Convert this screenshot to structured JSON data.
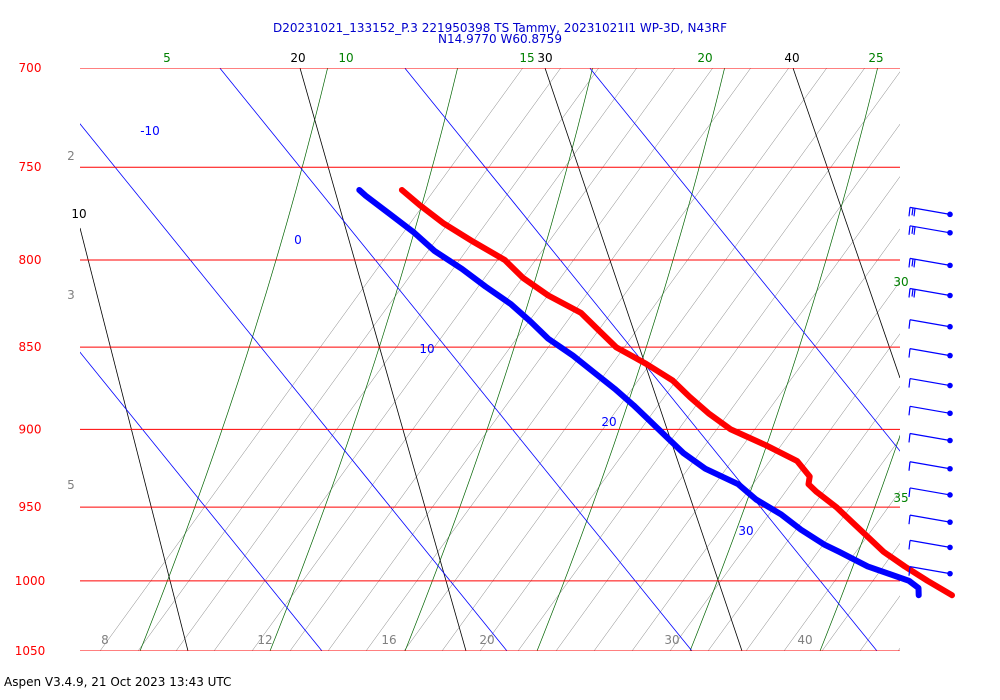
{
  "title_line1": "D20231021_133152_P.3 221950398 TS Tammy, 20231021I1 WP-3D, N43RF",
  "title_line2": "N14.9770 W60.8759",
  "footer": "Aspen V3.4.9, 21 Oct 2023  13:43 UTC",
  "colors": {
    "isobar": "#ff0000",
    "isotherm": "#0000ff",
    "dry_adiabat": "#000000",
    "moist_adiabat": "#006400",
    "mixing_ratio": "#808080",
    "temperature": "#ff0000",
    "dewpoint": "#0000ff",
    "wind_barb": "#0000ff"
  },
  "chart_data": {
    "type": "skew-t log-p",
    "pressure_levels": [
      700,
      750,
      800,
      850,
      900,
      950,
      1000,
      1050
    ],
    "pressure_range": [
      700,
      1050
    ],
    "isotherm_labels": [
      "-10",
      "0",
      "10",
      "20",
      "30"
    ],
    "dry_adiabat_labels": [
      "20",
      "30",
      "40",
      "10"
    ],
    "moist_adiabat_labels": [
      "5",
      "10",
      "15",
      "20",
      "25",
      "30",
      "35"
    ],
    "mixing_ratio_labels": [
      "8",
      "12",
      "16",
      "20",
      "30",
      "40",
      "2",
      "3",
      "5"
    ],
    "temperature": [
      {
        "p": 1010,
        "t": 26.5
      },
      {
        "p": 1000,
        "t": 25.8
      },
      {
        "p": 990,
        "t": 25.2
      },
      {
        "p": 980,
        "t": 24.7
      },
      {
        "p": 970,
        "t": 24.5
      },
      {
        "p": 960,
        "t": 24.3
      },
      {
        "p": 950,
        "t": 24.1
      },
      {
        "p": 940,
        "t": 23.7
      },
      {
        "p": 935,
        "t": 23.6
      },
      {
        "p": 930,
        "t": 24.0
      },
      {
        "p": 925,
        "t": 24.0
      },
      {
        "p": 920,
        "t": 24.0
      },
      {
        "p": 910,
        "t": 23.0
      },
      {
        "p": 900,
        "t": 21.8
      },
      {
        "p": 890,
        "t": 21.3
      },
      {
        "p": 880,
        "t": 21.0
      },
      {
        "p": 870,
        "t": 20.8
      },
      {
        "p": 860,
        "t": 20.1
      },
      {
        "p": 850,
        "t": 19.2
      },
      {
        "p": 840,
        "t": 19.0
      },
      {
        "p": 830,
        "t": 18.8
      },
      {
        "p": 820,
        "t": 17.8
      },
      {
        "p": 810,
        "t": 17.2
      },
      {
        "p": 800,
        "t": 17.0
      },
      {
        "p": 790,
        "t": 16.1
      },
      {
        "p": 780,
        "t": 15.3
      },
      {
        "p": 770,
        "t": 14.8
      },
      {
        "p": 762,
        "t": 14.5
      }
    ],
    "dewpoint": [
      {
        "p": 1010,
        "t": 24.7
      },
      {
        "p": 1005,
        "t": 25.0
      },
      {
        "p": 1000,
        "t": 24.8
      },
      {
        "p": 990,
        "t": 23.2
      },
      {
        "p": 980,
        "t": 22.3
      },
      {
        "p": 975,
        "t": 21.8
      },
      {
        "p": 965,
        "t": 21.2
      },
      {
        "p": 955,
        "t": 20.8
      },
      {
        "p": 945,
        "t": 20.1
      },
      {
        "p": 935,
        "t": 19.8
      },
      {
        "p": 925,
        "t": 18.7
      },
      {
        "p": 915,
        "t": 18.2
      },
      {
        "p": 905,
        "t": 18.0
      },
      {
        "p": 895,
        "t": 17.8
      },
      {
        "p": 885,
        "t": 17.6
      },
      {
        "p": 875,
        "t": 17.3
      },
      {
        "p": 865,
        "t": 16.9
      },
      {
        "p": 855,
        "t": 16.5
      },
      {
        "p": 845,
        "t": 15.9
      },
      {
        "p": 835,
        "t": 15.7
      },
      {
        "p": 825,
        "t": 15.4
      },
      {
        "p": 815,
        "t": 14.8
      },
      {
        "p": 805,
        "t": 14.3
      },
      {
        "p": 795,
        "t": 13.6
      },
      {
        "p": 785,
        "t": 13.3
      },
      {
        "p": 775,
        "t": 12.8
      },
      {
        "p": 765,
        "t": 12.3
      },
      {
        "p": 762,
        "t": 12.2
      }
    ],
    "wind_barbs": [
      {
        "p": 775,
        "speed_kt": 15
      },
      {
        "p": 785,
        "speed_kt": 15
      },
      {
        "p": 803,
        "speed_kt": 15
      },
      {
        "p": 820,
        "speed_kt": 15
      },
      {
        "p": 838,
        "speed_kt": 10
      },
      {
        "p": 855,
        "speed_kt": 10
      },
      {
        "p": 873,
        "speed_kt": 10
      },
      {
        "p": 890,
        "speed_kt": 10
      },
      {
        "p": 907,
        "speed_kt": 10
      },
      {
        "p": 925,
        "speed_kt": 10
      },
      {
        "p": 942,
        "speed_kt": 10
      },
      {
        "p": 960,
        "speed_kt": 10
      },
      {
        "p": 977,
        "speed_kt": 10
      },
      {
        "p": 995,
        "speed_kt": 10
      }
    ]
  }
}
